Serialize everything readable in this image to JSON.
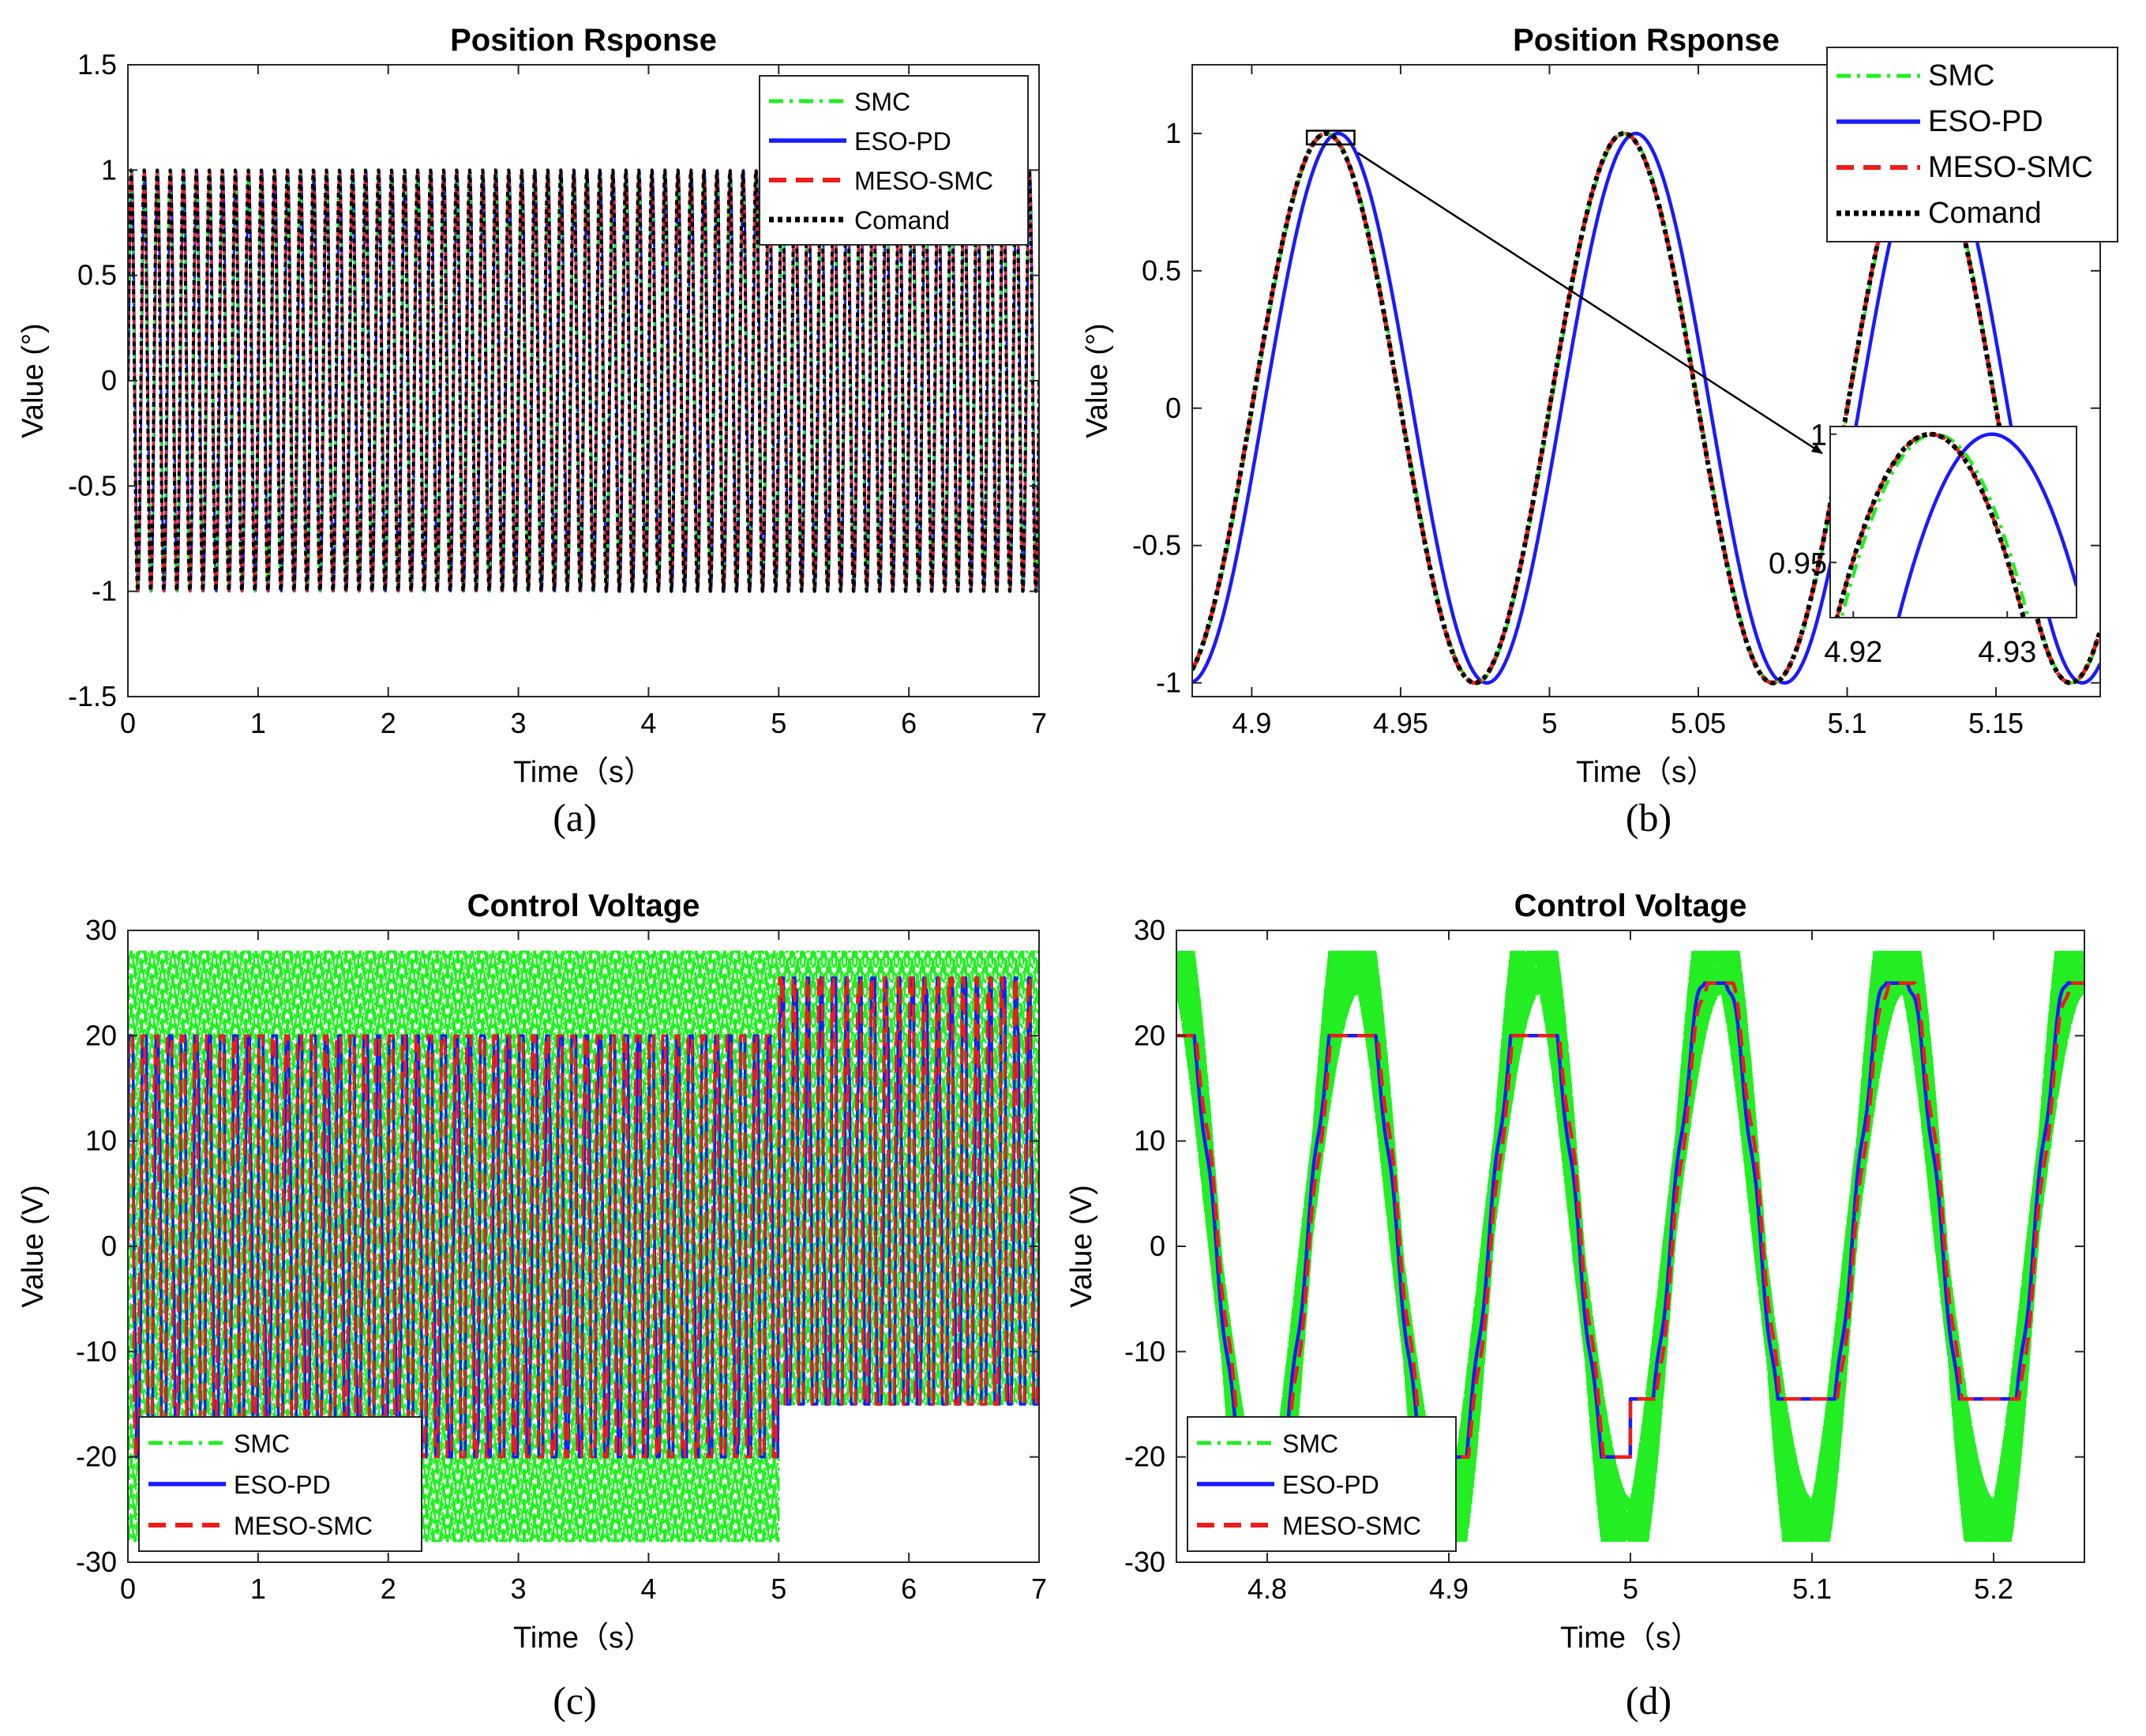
{
  "chart_data": [
    {
      "id": "a",
      "type": "line",
      "title": "Position Rsponse",
      "xlabel": "Time（s）",
      "ylabel": "Value (°)",
      "caption": "(a)",
      "xlim": [
        0,
        7
      ],
      "ylim": [
        -1.5,
        1.5
      ],
      "xticks": [
        0,
        1,
        2,
        3,
        4,
        5,
        6,
        7
      ],
      "yticks": [
        -1.5,
        -1,
        -0.5,
        0,
        0.5,
        1,
        1.5
      ],
      "signal": {
        "kind": "sine",
        "amplitude": 1,
        "frequency_hz": 10,
        "phase_lag_s": {
          "SMC": 0.0003,
          "ESO-PD": 0.004,
          "MESO-SMC": 0,
          "Comand": 0
        }
      },
      "legend_position": "top-right",
      "series": [
        {
          "name": "SMC",
          "color": "#22ee22",
          "style": "dashdot"
        },
        {
          "name": "ESO-PD",
          "color": "#1a1aff",
          "style": "solid"
        },
        {
          "name": "MESO-SMC",
          "color": "#ee1c1c",
          "style": "dashed"
        },
        {
          "name": "Comand",
          "color": "#000000",
          "style": "dotted"
        }
      ]
    },
    {
      "id": "b",
      "type": "line",
      "title": "Position Rsponse",
      "xlabel": "Time（s）",
      "ylabel": "Value (°)",
      "caption": "(b)",
      "xlim": [
        4.88,
        5.185
      ],
      "ylim": [
        -1.05,
        1.25
      ],
      "xticks": [
        4.9,
        4.95,
        5,
        5.05,
        5.1,
        5.15
      ],
      "yticks": [
        -1,
        -0.5,
        0,
        0.5,
        1
      ],
      "signal": {
        "kind": "sine",
        "amplitude": 1,
        "frequency_hz": 10,
        "phase_lag_s": {
          "SMC": 0.0003,
          "ESO-PD": 0.004,
          "MESO-SMC": 0,
          "Comand": 0
        }
      },
      "legend_position": "top-right",
      "inset": {
        "xlim": [
          4.9185,
          4.9345
        ],
        "ylim": [
          0.9285,
          1.003
        ],
        "xticks": [
          4.92,
          4.93
        ],
        "yticks": [
          0.95,
          1
        ]
      },
      "series": [
        {
          "name": "SMC",
          "color": "#22ee22",
          "style": "dashdot"
        },
        {
          "name": "ESO-PD",
          "color": "#1a1aff",
          "style": "solid"
        },
        {
          "name": "MESO-SMC",
          "color": "#ee1c1c",
          "style": "dashed"
        },
        {
          "name": "Comand",
          "color": "#000000",
          "style": "dotted"
        }
      ]
    },
    {
      "id": "c",
      "type": "line",
      "title": "Control Voltage",
      "xlabel": "Time（s）",
      "ylabel": "Value (V)",
      "caption": "(c)",
      "xlim": [
        0,
        7
      ],
      "ylim": [
        -30,
        30
      ],
      "xticks": [
        0,
        1,
        2,
        3,
        4,
        5,
        6,
        7
      ],
      "yticks": [
        -30,
        -20,
        -10,
        0,
        10,
        20,
        30
      ],
      "signal": {
        "kind": "envelope",
        "frequency_hz": 10,
        "switch_time_s": 5,
        "SMC_range_before": [
          -28,
          28
        ],
        "SMC_range_after": [
          -15,
          28
        ],
        "ESO_PD_range_before": [
          -20,
          20
        ],
        "ESO_PD_range_after": [
          -15,
          25.5
        ]
      },
      "legend_position": "bottom-left",
      "series": [
        {
          "name": "SMC",
          "color": "#22ee22",
          "style": "dashdot"
        },
        {
          "name": "ESO-PD",
          "color": "#1a1aff",
          "style": "solid"
        },
        {
          "name": "MESO-SMC",
          "color": "#ee1c1c",
          "style": "dashed"
        }
      ]
    },
    {
      "id": "d",
      "type": "line",
      "title": "Control Voltage",
      "xlabel": "Time（s）",
      "ylabel": "Value (V)",
      "caption": "(d)",
      "xlim": [
        4.75,
        5.25
      ],
      "ylim": [
        -30,
        30
      ],
      "xticks": [
        4.8,
        4.9,
        5,
        5.1,
        5.2
      ],
      "yticks": [
        -30,
        -20,
        -10,
        0,
        10,
        20,
        30
      ],
      "signal": {
        "kind": "saturated-sine",
        "frequency_hz": 10,
        "switch_time_s": 5,
        "ESO_PD_limits_before": [
          -20,
          20
        ],
        "ESO_PD_limits_after": [
          -14.5,
          25
        ],
        "SMC_chatter_amplitude_V": 8,
        "SMC_limits": [
          -28,
          28
        ]
      },
      "legend_position": "bottom-left",
      "series": [
        {
          "name": "SMC",
          "color": "#22ee22",
          "style": "dashdot"
        },
        {
          "name": "ESO-PD",
          "color": "#1a1aff",
          "style": "solid"
        },
        {
          "name": "MESO-SMC",
          "color": "#ee1c1c",
          "style": "dashed"
        }
      ]
    }
  ]
}
